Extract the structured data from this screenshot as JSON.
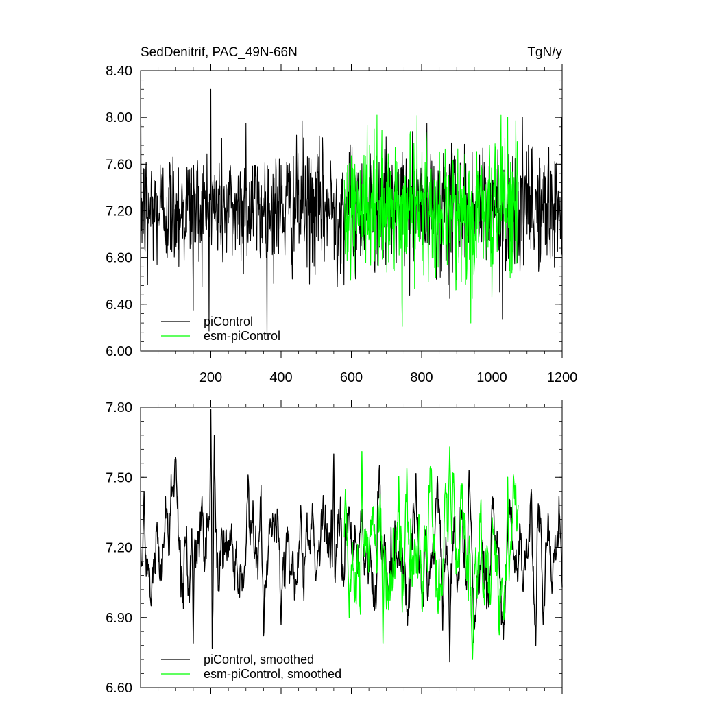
{
  "chart_data": [
    {
      "type": "line",
      "title": "SedDenitrif, PAC_49N-66N",
      "units": "TgN/y",
      "xlabel": "",
      "ylabel": "",
      "xlim": [
        0,
        1200
      ],
      "ylim": [
        6.0,
        8.4
      ],
      "xticks": [
        200,
        400,
        600,
        800,
        1000,
        1200
      ],
      "xtick_labels": [
        "200",
        "400",
        "600",
        "800",
        "1000",
        "1200"
      ],
      "yticks": [
        6.0,
        6.4,
        6.8,
        7.2,
        7.6,
        8.0,
        8.4
      ],
      "ytick_labels": [
        "6.00",
        "6.40",
        "6.80",
        "7.20",
        "7.60",
        "8.00",
        "8.40"
      ],
      "legend_position": "bottom-left",
      "series": [
        {
          "name": "piControl",
          "color": "#000000",
          "x_range": [
            1,
            1200
          ],
          "mean": 7.22,
          "amplitude": 0.26,
          "points": [
            [
              20,
              6.57
            ],
            [
              150,
              6.35
            ],
            [
              200,
              8.24
            ],
            [
              300,
              7.95
            ],
            [
              460,
              7.97
            ],
            [
              560,
              6.55
            ],
            [
              880,
              6.45
            ],
            [
              1030,
              6.27
            ],
            [
              1080,
              6.68
            ],
            [
              1200,
              6.81
            ]
          ]
        },
        {
          "name": "esm-piControl",
          "color": "#00ff00",
          "x_range": [
            580,
            1075
          ],
          "mean": 7.2,
          "amplitude": 0.28,
          "points": [
            [
              645,
              7.93
            ],
            [
              745,
              6.21
            ],
            [
              940,
              6.24
            ],
            [
              1045,
              8.0
            ]
          ]
        }
      ]
    },
    {
      "type": "line",
      "title": "",
      "xlabel": "",
      "ylabel": "",
      "xlim": [
        0,
        1200
      ],
      "ylim": [
        6.6,
        7.8
      ],
      "xticks": [
        200,
        400,
        600,
        800,
        1000,
        1200
      ],
      "yticks": [
        6.6,
        6.9,
        7.2,
        7.5,
        7.8
      ],
      "ytick_labels": [
        "6.60",
        "6.90",
        "7.20",
        "7.50",
        "7.80"
      ],
      "legend_position": "bottom-left",
      "series": [
        {
          "name": "piControl, smoothed",
          "color": "#000000",
          "x_range": [
            1,
            1200
          ],
          "mean": 7.18,
          "amplitude": 0.13,
          "points": [
            [
              10,
              7.44
            ],
            [
              30,
              6.95
            ],
            [
              150,
              6.79
            ],
            [
              200,
              7.79
            ],
            [
              210,
              7.68
            ],
            [
              400,
              6.87
            ],
            [
              550,
              7.6
            ],
            [
              880,
              6.71
            ],
            [
              935,
              7.53
            ],
            [
              1125,
              6.78
            ],
            [
              1200,
              7.03
            ]
          ]
        },
        {
          "name": "esm-piControl, smoothed",
          "color": "#00ff00",
          "x_range": [
            580,
            1075
          ],
          "mean": 7.18,
          "amplitude": 0.15,
          "points": [
            [
              630,
              7.61
            ],
            [
              690,
              6.79
            ],
            [
              880,
              7.63
            ],
            [
              945,
              6.72
            ],
            [
              1045,
              7.5
            ]
          ]
        }
      ]
    }
  ]
}
